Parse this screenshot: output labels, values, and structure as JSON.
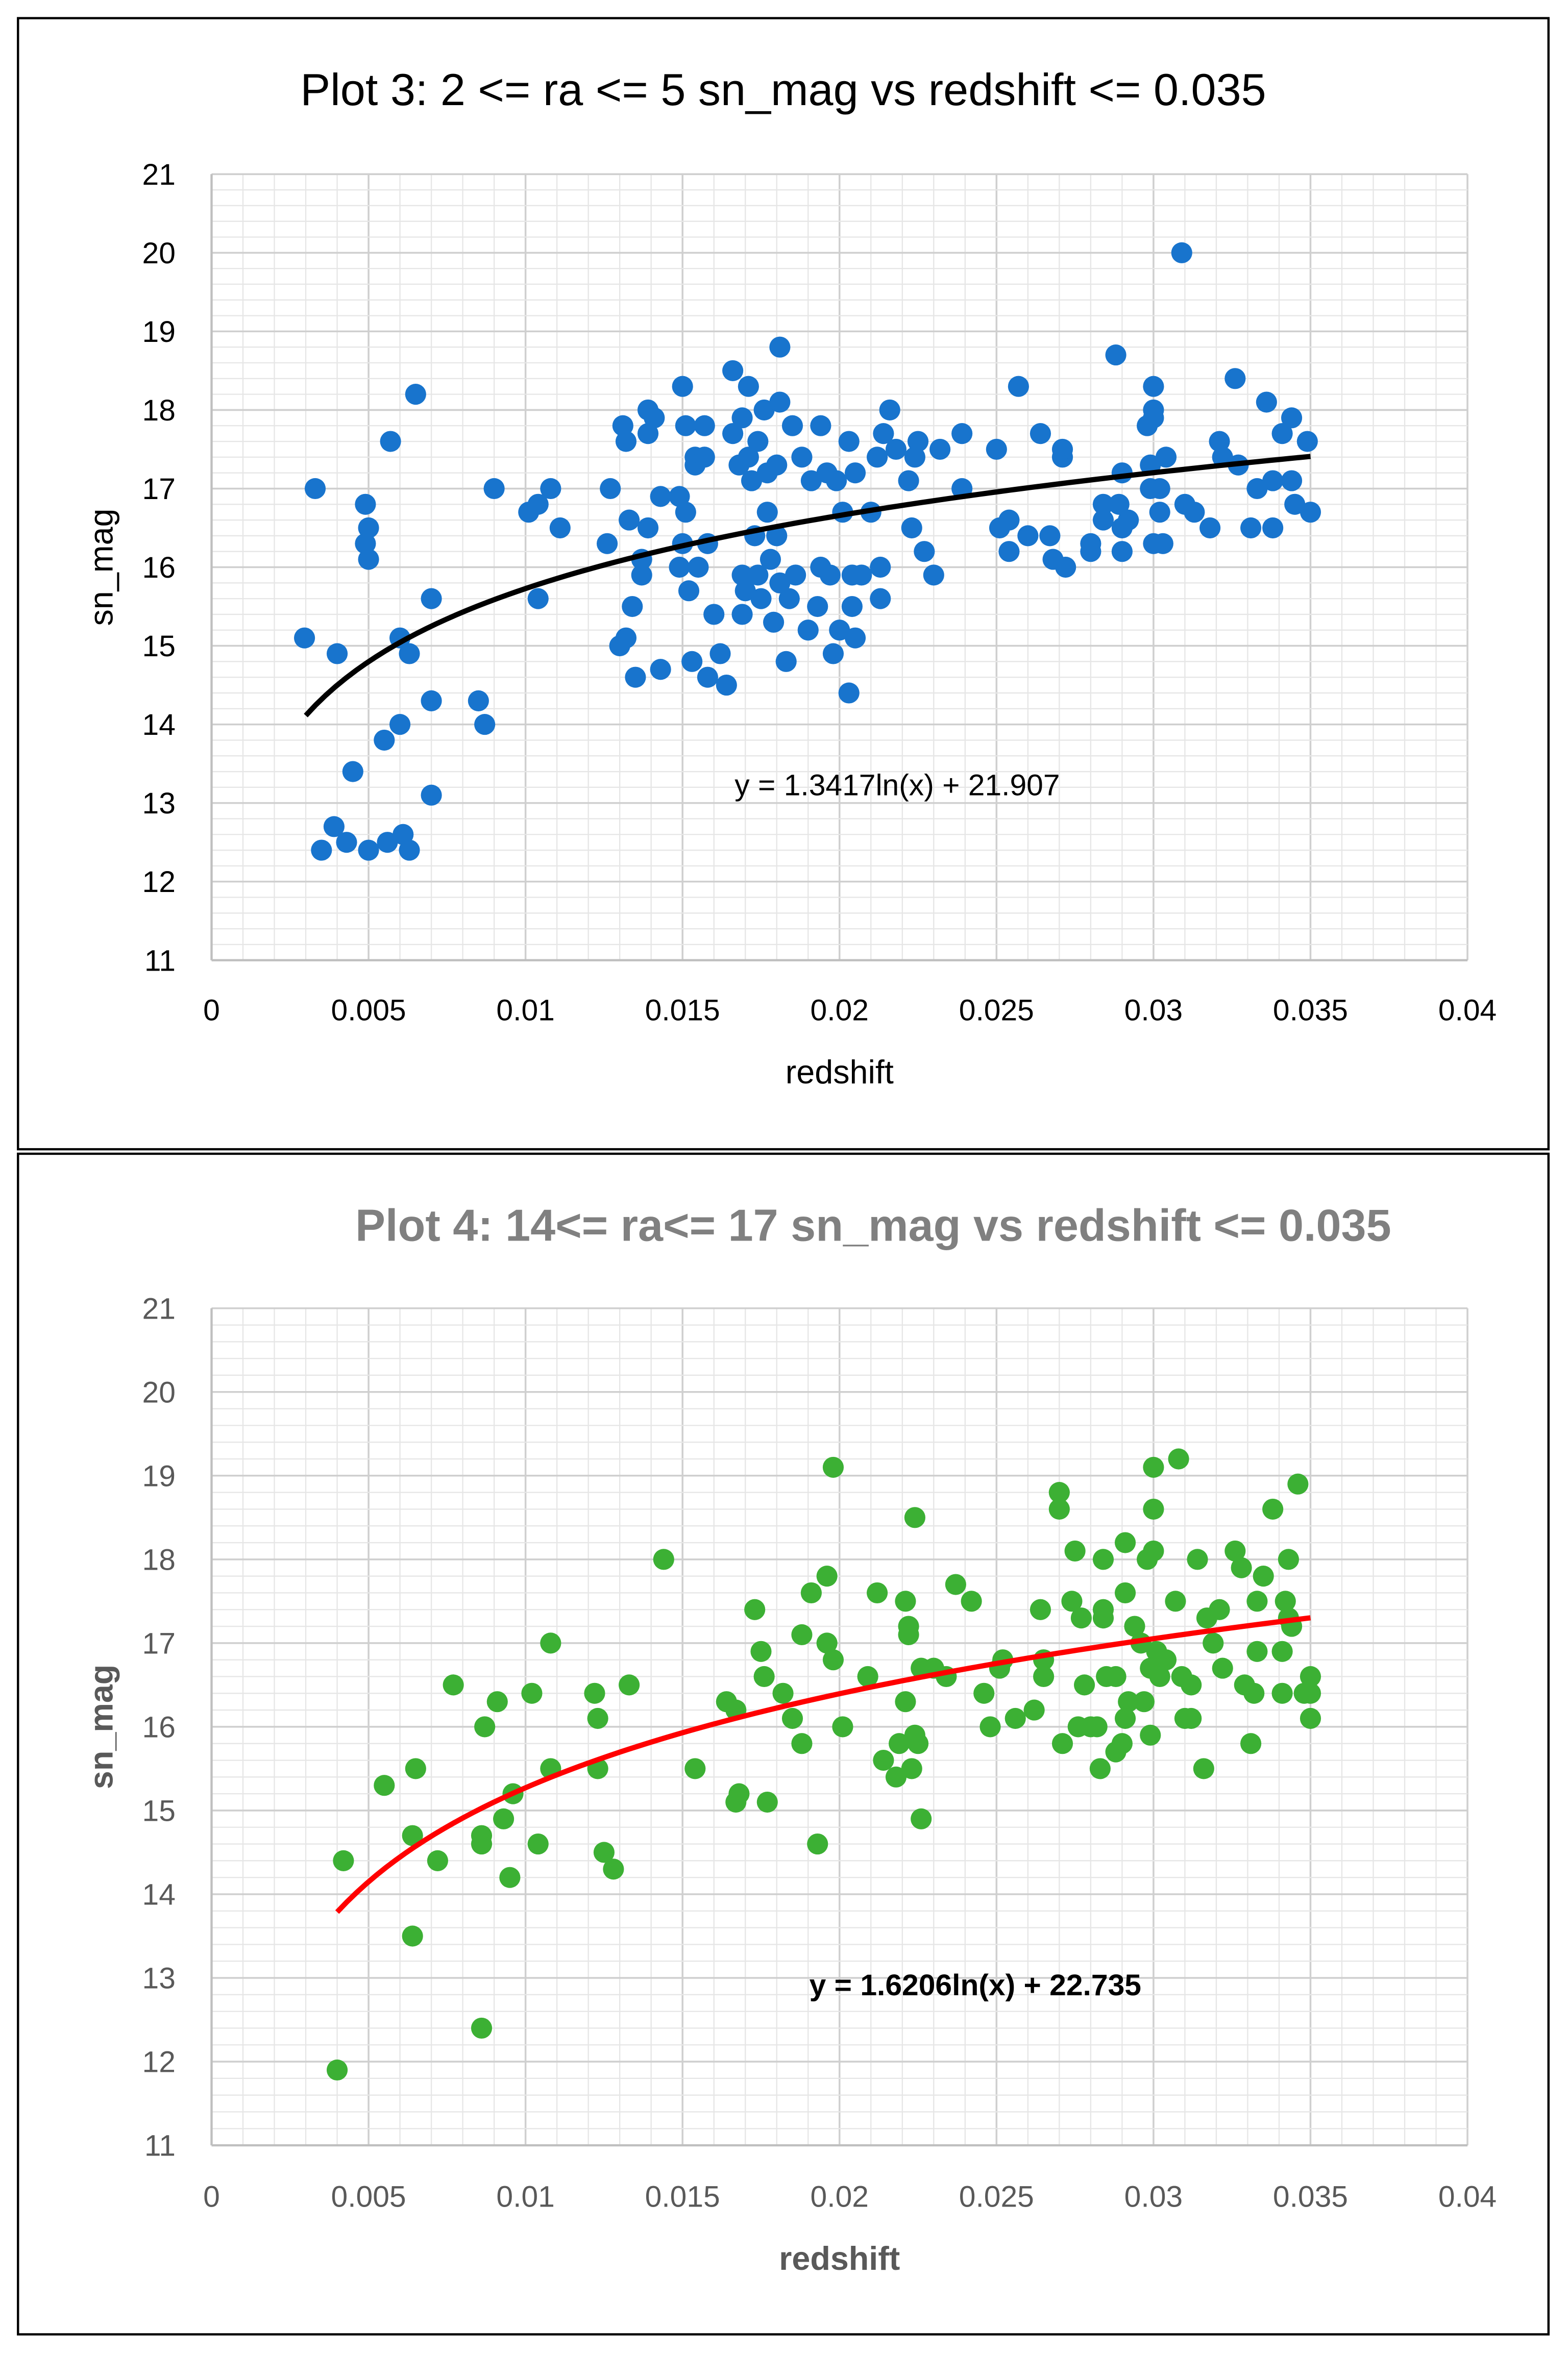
{
  "chart_data": [
    {
      "type": "scatter",
      "title": "Plot 3: 2 <= ra <= 5 sn_mag vs redshift <= 0.035",
      "xlabel": "redshift",
      "ylabel": "sn_mag",
      "xlim": [
        0,
        0.04
      ],
      "ylim": [
        11,
        21
      ],
      "xticks": [
        "0",
        "0.005",
        "0.01",
        "0.015",
        "0.02",
        "0.025",
        "0.03",
        "0.035",
        "0.04"
      ],
      "yticks": [
        "11",
        "12",
        "13",
        "14",
        "15",
        "16",
        "17",
        "18",
        "19",
        "20",
        "21"
      ],
      "grid": true,
      "point_color": "#1874CD",
      "trend_color": "#000000",
      "title_color": "#000000",
      "text_color": "#000000",
      "trendline": {
        "type": "log",
        "a": 1.3417,
        "b": 21.907,
        "x_range": [
          0.003,
          0.035
        ],
        "label": "y = 1.3417ln(x) + 21.907"
      },
      "points": [
        [
          0.00296,
          15.1
        ],
        [
          0.0033,
          17.0
        ],
        [
          0.0035,
          12.4
        ],
        [
          0.0039,
          12.7
        ],
        [
          0.004,
          14.9
        ],
        [
          0.0043,
          12.5
        ],
        [
          0.0045,
          13.4
        ],
        [
          0.0049,
          16.8
        ],
        [
          0.005,
          16.5
        ],
        [
          0.0049,
          16.3
        ],
        [
          0.005,
          16.1
        ],
        [
          0.005,
          12.4
        ],
        [
          0.0055,
          13.8
        ],
        [
          0.0056,
          12.5
        ],
        [
          0.0057,
          17.6
        ],
        [
          0.006,
          15.1
        ],
        [
          0.006,
          14.0
        ],
        [
          0.0061,
          12.6
        ],
        [
          0.0063,
          12.4
        ],
        [
          0.0063,
          14.9
        ],
        [
          0.0065,
          18.2
        ],
        [
          0.007,
          15.6
        ],
        [
          0.007,
          14.3
        ],
        [
          0.007,
          13.1
        ],
        [
          0.0085,
          14.3
        ],
        [
          0.0087,
          14.0
        ],
        [
          0.009,
          17.0
        ],
        [
          0.0101,
          16.7
        ],
        [
          0.0104,
          16.8
        ],
        [
          0.0104,
          15.6
        ],
        [
          0.0108,
          17.0
        ],
        [
          0.0111,
          16.5
        ],
        [
          0.0126,
          16.3
        ],
        [
          0.0127,
          17.0
        ],
        [
          0.013,
          15.0
        ],
        [
          0.0131,
          17.8
        ],
        [
          0.0132,
          15.1
        ],
        [
          0.0132,
          17.6
        ],
        [
          0.0133,
          16.6
        ],
        [
          0.0134,
          15.5
        ],
        [
          0.0135,
          14.6
        ],
        [
          0.0137,
          16.1
        ],
        [
          0.0137,
          15.9
        ],
        [
          0.0139,
          16.5
        ],
        [
          0.0139,
          18.0
        ],
        [
          0.0139,
          17.7
        ],
        [
          0.0141,
          17.9
        ],
        [
          0.0143,
          16.9
        ],
        [
          0.0143,
          14.7
        ],
        [
          0.015,
          18.3
        ],
        [
          0.0149,
          16.9
        ],
        [
          0.0151,
          16.7
        ],
        [
          0.015,
          16.3
        ],
        [
          0.0149,
          16.0
        ],
        [
          0.0151,
          17.8
        ],
        [
          0.0152,
          15.7
        ],
        [
          0.0153,
          14.8
        ],
        [
          0.0154,
          17.3
        ],
        [
          0.0154,
          17.4
        ],
        [
          0.0155,
          16.0
        ],
        [
          0.0157,
          17.4
        ],
        [
          0.0157,
          17.8
        ],
        [
          0.0158,
          16.3
        ],
        [
          0.0158,
          14.6
        ],
        [
          0.016,
          15.4
        ],
        [
          0.0162,
          14.9
        ],
        [
          0.0164,
          14.5
        ],
        [
          0.0166,
          18.5
        ],
        [
          0.0166,
          17.7
        ],
        [
          0.0168,
          17.3
        ],
        [
          0.0169,
          15.9
        ],
        [
          0.0169,
          15.4
        ],
        [
          0.0169,
          17.9
        ],
        [
          0.017,
          15.7
        ],
        [
          0.0171,
          18.3
        ],
        [
          0.0171,
          17.4
        ],
        [
          0.0172,
          17.1
        ],
        [
          0.0173,
          16.4
        ],
        [
          0.0174,
          17.6
        ],
        [
          0.0174,
          15.9
        ],
        [
          0.0175,
          15.6
        ],
        [
          0.0176,
          18.0
        ],
        [
          0.0177,
          17.2
        ],
        [
          0.0177,
          16.7
        ],
        [
          0.0178,
          16.1
        ],
        [
          0.0179,
          15.3
        ],
        [
          0.018,
          16.4
        ],
        [
          0.018,
          17.3
        ],
        [
          0.0181,
          18.8
        ],
        [
          0.0181,
          18.1
        ],
        [
          0.0181,
          15.8
        ],
        [
          0.0183,
          14.8
        ],
        [
          0.0184,
          15.6
        ],
        [
          0.0185,
          17.8
        ],
        [
          0.0186,
          15.9
        ],
        [
          0.0188,
          17.4
        ],
        [
          0.019,
          15.2
        ],
        [
          0.0191,
          17.1
        ],
        [
          0.0193,
          15.5
        ],
        [
          0.0194,
          16.0
        ],
        [
          0.0194,
          17.8
        ],
        [
          0.0196,
          17.2
        ],
        [
          0.0197,
          15.9
        ],
        [
          0.0198,
          14.9
        ],
        [
          0.0199,
          17.1
        ],
        [
          0.02,
          15.2
        ],
        [
          0.0201,
          16.7
        ],
        [
          0.0203,
          14.4
        ],
        [
          0.0203,
          17.6
        ],
        [
          0.0204,
          15.5
        ],
        [
          0.0204,
          15.9
        ],
        [
          0.0205,
          17.2
        ],
        [
          0.0205,
          15.1
        ],
        [
          0.0207,
          15.9
        ],
        [
          0.021,
          16.7
        ],
        [
          0.0212,
          17.4
        ],
        [
          0.0213,
          15.6
        ],
        [
          0.0213,
          16.0
        ],
        [
          0.0214,
          17.7
        ],
        [
          0.0216,
          18.0
        ],
        [
          0.0218,
          17.5
        ],
        [
          0.0222,
          17.1
        ],
        [
          0.0223,
          16.5
        ],
        [
          0.0224,
          17.4
        ],
        [
          0.0225,
          17.6
        ],
        [
          0.0227,
          16.2
        ],
        [
          0.023,
          15.9
        ],
        [
          0.0232,
          17.5
        ],
        [
          0.0239,
          17.7
        ],
        [
          0.0239,
          17.0
        ],
        [
          0.025,
          17.5
        ],
        [
          0.0251,
          16.5
        ],
        [
          0.0254,
          16.2
        ],
        [
          0.0254,
          16.6
        ],
        [
          0.0257,
          18.3
        ],
        [
          0.026,
          16.4
        ],
        [
          0.0264,
          17.7
        ],
        [
          0.0267,
          16.4
        ],
        [
          0.0268,
          16.1
        ],
        [
          0.0271,
          17.4
        ],
        [
          0.0271,
          17.5
        ],
        [
          0.0272,
          16.0
        ],
        [
          0.028,
          16.2
        ],
        [
          0.028,
          16.3
        ],
        [
          0.0284,
          16.6
        ],
        [
          0.0284,
          16.8
        ],
        [
          0.0288,
          18.7
        ],
        [
          0.029,
          17.2
        ],
        [
          0.0289,
          16.8
        ],
        [
          0.029,
          16.5
        ],
        [
          0.029,
          16.2
        ],
        [
          0.0292,
          16.6
        ],
        [
          0.0298,
          17.8
        ],
        [
          0.0299,
          17.0
        ],
        [
          0.0299,
          17.3
        ],
        [
          0.03,
          18.3
        ],
        [
          0.03,
          17.9
        ],
        [
          0.03,
          18.0
        ],
        [
          0.03,
          16.3
        ],
        [
          0.0302,
          17.0
        ],
        [
          0.0302,
          16.7
        ],
        [
          0.0303,
          16.3
        ],
        [
          0.0304,
          17.4
        ],
        [
          0.0309,
          20.0
        ],
        [
          0.031,
          16.8
        ],
        [
          0.0313,
          16.7
        ],
        [
          0.0318,
          16.5
        ],
        [
          0.0321,
          17.6
        ],
        [
          0.0322,
          17.4
        ],
        [
          0.0326,
          18.4
        ],
        [
          0.0327,
          17.3
        ],
        [
          0.0331,
          16.5
        ],
        [
          0.0333,
          17.0
        ],
        [
          0.0336,
          18.1
        ],
        [
          0.0338,
          17.1
        ],
        [
          0.0338,
          16.5
        ],
        [
          0.0341,
          17.7
        ],
        [
          0.0344,
          17.1
        ],
        [
          0.0344,
          17.9
        ],
        [
          0.0345,
          16.8
        ],
        [
          0.0349,
          17.6
        ],
        [
          0.035,
          16.7
        ]
      ]
    },
    {
      "type": "scatter",
      "title": "Plot 4: 14<= ra<= 17 sn_mag vs redshift <= 0.035",
      "xlabel": "redshift",
      "ylabel": "sn_mag",
      "xlim": [
        0,
        0.04
      ],
      "ylim": [
        11,
        21
      ],
      "xticks": [
        "0",
        "0.005",
        "0.01",
        "0.015",
        "0.02",
        "0.025",
        "0.03",
        "0.035",
        "0.04"
      ],
      "yticks": [
        "11",
        "12",
        "13",
        "14",
        "15",
        "16",
        "17",
        "18",
        "19",
        "20",
        "21"
      ],
      "grid": true,
      "point_color": "#3CB034",
      "trend_color": "#FF0000",
      "title_color": "#808080",
      "text_color": "#595959",
      "trendline": {
        "type": "log",
        "a": 1.6206,
        "b": 22.735,
        "x_range": [
          0.004,
          0.035
        ],
        "label": "y = 1.6206ln(x) + 22.735"
      },
      "points": [
        [
          0.004,
          11.9
        ],
        [
          0.0042,
          14.4
        ],
        [
          0.0055,
          15.3
        ],
        [
          0.0064,
          14.7
        ],
        [
          0.0065,
          15.5
        ],
        [
          0.0064,
          13.5
        ],
        [
          0.0072,
          14.4
        ],
        [
          0.0077,
          16.5
        ],
        [
          0.0086,
          12.4
        ],
        [
          0.0086,
          14.6
        ],
        [
          0.0087,
          16.0
        ],
        [
          0.0086,
          14.7
        ],
        [
          0.0091,
          16.3
        ],
        [
          0.0093,
          14.9
        ],
        [
          0.0095,
          14.2
        ],
        [
          0.0096,
          15.2
        ],
        [
          0.0102,
          16.4
        ],
        [
          0.0104,
          14.6
        ],
        [
          0.0108,
          17.0
        ],
        [
          0.0108,
          15.5
        ],
        [
          0.0122,
          16.4
        ],
        [
          0.0123,
          16.1
        ],
        [
          0.0123,
          15.5
        ],
        [
          0.0125,
          14.5
        ],
        [
          0.0128,
          14.3
        ],
        [
          0.0133,
          16.5
        ],
        [
          0.0144,
          18.0
        ],
        [
          0.0154,
          15.5
        ],
        [
          0.0164,
          16.3
        ],
        [
          0.0167,
          16.2
        ],
        [
          0.0167,
          15.1
        ],
        [
          0.0168,
          15.2
        ],
        [
          0.0173,
          17.4
        ],
        [
          0.0175,
          16.9
        ],
        [
          0.0176,
          16.6
        ],
        [
          0.0177,
          15.1
        ],
        [
          0.0182,
          16.4
        ],
        [
          0.0185,
          16.1
        ],
        [
          0.0188,
          15.8
        ],
        [
          0.0188,
          17.1
        ],
        [
          0.0191,
          17.6
        ],
        [
          0.0193,
          14.6
        ],
        [
          0.0196,
          17.8
        ],
        [
          0.0196,
          17.0
        ],
        [
          0.0198,
          19.1
        ],
        [
          0.0198,
          16.8
        ],
        [
          0.0201,
          16.0
        ],
        [
          0.0209,
          16.6
        ],
        [
          0.0212,
          17.6
        ],
        [
          0.0214,
          15.6
        ],
        [
          0.0218,
          15.4
        ],
        [
          0.0219,
          15.8
        ],
        [
          0.0221,
          17.5
        ],
        [
          0.0221,
          16.3
        ],
        [
          0.0222,
          17.1
        ],
        [
          0.0222,
          17.2
        ],
        [
          0.0223,
          15.5
        ],
        [
          0.0224,
          18.5
        ],
        [
          0.0224,
          15.9
        ],
        [
          0.0225,
          15.8
        ],
        [
          0.0226,
          14.9
        ],
        [
          0.0226,
          16.7
        ],
        [
          0.023,
          16.7
        ],
        [
          0.0234,
          16.6
        ],
        [
          0.0237,
          17.7
        ],
        [
          0.0242,
          17.5
        ],
        [
          0.0246,
          16.4
        ],
        [
          0.0248,
          16.0
        ],
        [
          0.0251,
          16.7
        ],
        [
          0.0252,
          16.8
        ],
        [
          0.0256,
          16.1
        ],
        [
          0.0262,
          16.2
        ],
        [
          0.0264,
          17.4
        ],
        [
          0.0265,
          16.6
        ],
        [
          0.0265,
          16.8
        ],
        [
          0.027,
          18.8
        ],
        [
          0.027,
          18.6
        ],
        [
          0.0271,
          15.8
        ],
        [
          0.0274,
          17.5
        ],
        [
          0.0275,
          18.1
        ],
        [
          0.0276,
          16.0
        ],
        [
          0.0277,
          17.3
        ],
        [
          0.0278,
          16.5
        ],
        [
          0.028,
          16.0
        ],
        [
          0.0282,
          16.0
        ],
        [
          0.0283,
          15.5
        ],
        [
          0.0284,
          17.4
        ],
        [
          0.0284,
          17.3
        ],
        [
          0.0285,
          16.6
        ],
        [
          0.0284,
          18.0
        ],
        [
          0.0288,
          15.7
        ],
        [
          0.0288,
          16.6
        ],
        [
          0.029,
          15.8
        ],
        [
          0.0291,
          16.1
        ],
        [
          0.0291,
          18.2
        ],
        [
          0.0291,
          17.6
        ],
        [
          0.0292,
          16.3
        ],
        [
          0.0294,
          17.2
        ],
        [
          0.0296,
          17.0
        ],
        [
          0.0297,
          16.3
        ],
        [
          0.0298,
          18.0
        ],
        [
          0.0299,
          15.9
        ],
        [
          0.0299,
          16.7
        ],
        [
          0.03,
          19.1
        ],
        [
          0.03,
          18.6
        ],
        [
          0.03,
          18.1
        ],
        [
          0.0301,
          16.9
        ],
        [
          0.0302,
          16.6
        ],
        [
          0.0304,
          16.8
        ],
        [
          0.0307,
          17.5
        ],
        [
          0.0308,
          19.2
        ],
        [
          0.0309,
          16.6
        ],
        [
          0.031,
          16.1
        ],
        [
          0.0312,
          16.5
        ],
        [
          0.0312,
          16.1
        ],
        [
          0.0314,
          18.0
        ],
        [
          0.0316,
          15.5
        ],
        [
          0.0317,
          17.3
        ],
        [
          0.0319,
          17.0
        ],
        [
          0.0321,
          17.4
        ],
        [
          0.0322,
          16.7
        ],
        [
          0.0326,
          18.1
        ],
        [
          0.0328,
          17.9
        ],
        [
          0.0329,
          16.5
        ],
        [
          0.0331,
          15.8
        ],
        [
          0.0332,
          16.4
        ],
        [
          0.0333,
          17.5
        ],
        [
          0.0333,
          16.9
        ],
        [
          0.0335,
          17.8
        ],
        [
          0.0338,
          18.6
        ],
        [
          0.0341,
          16.4
        ],
        [
          0.0341,
          16.9
        ],
        [
          0.0342,
          17.5
        ],
        [
          0.0343,
          18.0
        ],
        [
          0.0343,
          17.3
        ],
        [
          0.0344,
          17.2
        ],
        [
          0.0346,
          18.9
        ],
        [
          0.0348,
          16.4
        ],
        [
          0.035,
          16.6
        ],
        [
          0.035,
          16.4
        ],
        [
          0.035,
          16.1
        ]
      ]
    }
  ]
}
